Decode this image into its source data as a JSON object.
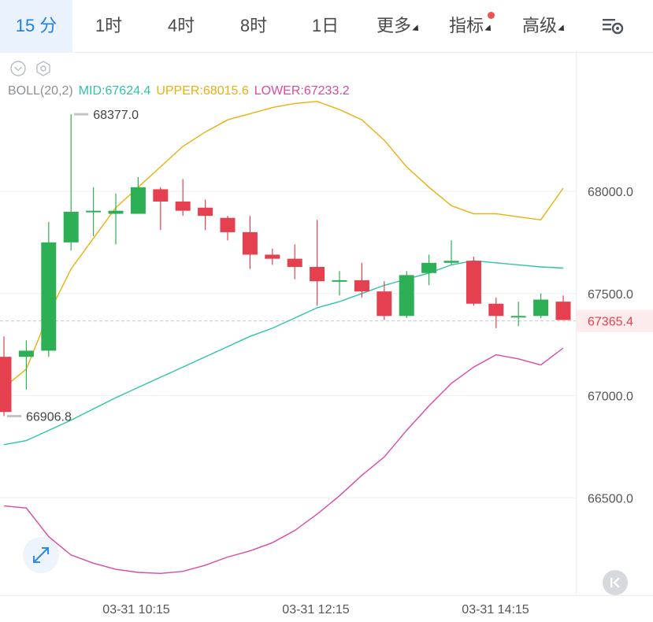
{
  "toolbar": {
    "tabs": [
      {
        "label": "15 分",
        "active": true
      },
      {
        "label": "1时"
      },
      {
        "label": "4时"
      },
      {
        "label": "8时"
      },
      {
        "label": "1日"
      },
      {
        "label": "更多",
        "dropdown": true
      },
      {
        "label": "指标",
        "dropdown": true,
        "badge": "red-dot"
      },
      {
        "label": "高级",
        "dropdown": true
      }
    ],
    "settings_icon": "chart-settings-icon"
  },
  "indicator": {
    "name": "BOLL(20,2)",
    "mid": "MID:67624.4",
    "upper": "UPPER:68015.6",
    "lower": "LOWER:67233.2",
    "icons": [
      "eye-check-icon",
      "hexagon-settings-icon"
    ]
  },
  "colors": {
    "up": "#2db055",
    "down": "#e5404f",
    "mid": "#2ec4a8",
    "upper": "#e8b10e",
    "lower": "#d84aa7",
    "label": "#1e7fe6",
    "current_price": "#e5404f"
  },
  "chart_data": {
    "type": "candlestick",
    "ylim": [
      66150,
      68850
    ],
    "y_ticks": [
      "68000.0",
      "67500.0",
      "67000.0",
      "66500.0"
    ],
    "x_tick_labels": [
      "03-31 10:15",
      "03-31 12:15",
      "03-31 14:15"
    ],
    "high_label": "68377.0",
    "low_label": "66906.8",
    "current_price": "67365.4",
    "candles": [
      {
        "o": 67190,
        "c": 66920,
        "h": 67290,
        "l": 66900
      },
      {
        "o": 67190,
        "c": 67220,
        "h": 67270,
        "l": 67030
      },
      {
        "o": 67220,
        "c": 67750,
        "h": 67850,
        "l": 67190
      },
      {
        "o": 67750,
        "c": 67900,
        "h": 68377,
        "l": 67710
      },
      {
        "o": 67900,
        "c": 67905,
        "h": 68020,
        "l": 67780
      },
      {
        "o": 67890,
        "c": 67905,
        "h": 67990,
        "l": 67740
      },
      {
        "o": 67890,
        "c": 68020,
        "h": 68070,
        "l": 67890
      },
      {
        "o": 68010,
        "c": 67950,
        "h": 68020,
        "l": 67810
      },
      {
        "o": 67950,
        "c": 67905,
        "h": 68060,
        "l": 67880
      },
      {
        "o": 67920,
        "c": 67880,
        "h": 67960,
        "l": 67810
      },
      {
        "o": 67870,
        "c": 67800,
        "h": 67880,
        "l": 67760
      },
      {
        "o": 67800,
        "c": 67690,
        "h": 67880,
        "l": 67620
      },
      {
        "o": 67690,
        "c": 67670,
        "h": 67720,
        "l": 67640
      },
      {
        "o": 67670,
        "c": 67630,
        "h": 67740,
        "l": 67570
      },
      {
        "o": 67630,
        "c": 67560,
        "h": 67860,
        "l": 67440
      },
      {
        "o": 67560,
        "c": 67565,
        "h": 67610,
        "l": 67490
      },
      {
        "o": 67565,
        "c": 67510,
        "h": 67650,
        "l": 67480
      },
      {
        "o": 67510,
        "c": 67390,
        "h": 67560,
        "l": 67370
      },
      {
        "o": 67390,
        "c": 67590,
        "h": 67610,
        "l": 67380
      },
      {
        "o": 67600,
        "c": 67650,
        "h": 67690,
        "l": 67540
      },
      {
        "o": 67650,
        "c": 67660,
        "h": 67760,
        "l": 67640
      },
      {
        "o": 67660,
        "c": 67450,
        "h": 67680,
        "l": 67440
      },
      {
        "o": 67450,
        "c": 67390,
        "h": 67480,
        "l": 67330
      },
      {
        "o": 67385,
        "c": 67390,
        "h": 67460,
        "l": 67340
      },
      {
        "o": 67390,
        "c": 67470,
        "h": 67500,
        "l": 67380
      },
      {
        "o": 67460,
        "c": 67370,
        "h": 67490,
        "l": 67370
      }
    ],
    "series": [
      {
        "name": "UPPER",
        "values": [
          67040,
          67130,
          67400,
          67620,
          67770,
          67920,
          68020,
          68120,
          68220,
          68290,
          68350,
          68380,
          68410,
          68430,
          68440,
          68400,
          68350,
          68250,
          68120,
          68020,
          67930,
          67890,
          67890,
          67875,
          67860,
          68015.6
        ]
      },
      {
        "name": "MID",
        "values": [
          66760,
          66780,
          66830,
          66880,
          66935,
          66990,
          67040,
          67090,
          67140,
          67190,
          67240,
          67290,
          67330,
          67380,
          67430,
          67460,
          67500,
          67540,
          67570,
          67600,
          67640,
          67660,
          67650,
          67640,
          67630,
          67624.4
        ]
      },
      {
        "name": "LOWER",
        "values": [
          66460,
          66450,
          66310,
          66220,
          66180,
          66150,
          66135,
          66130,
          66140,
          66170,
          66210,
          66240,
          66280,
          66340,
          66420,
          66510,
          66610,
          66700,
          66830,
          66950,
          67060,
          67140,
          67200,
          67180,
          67150,
          67233.2
        ]
      }
    ]
  }
}
